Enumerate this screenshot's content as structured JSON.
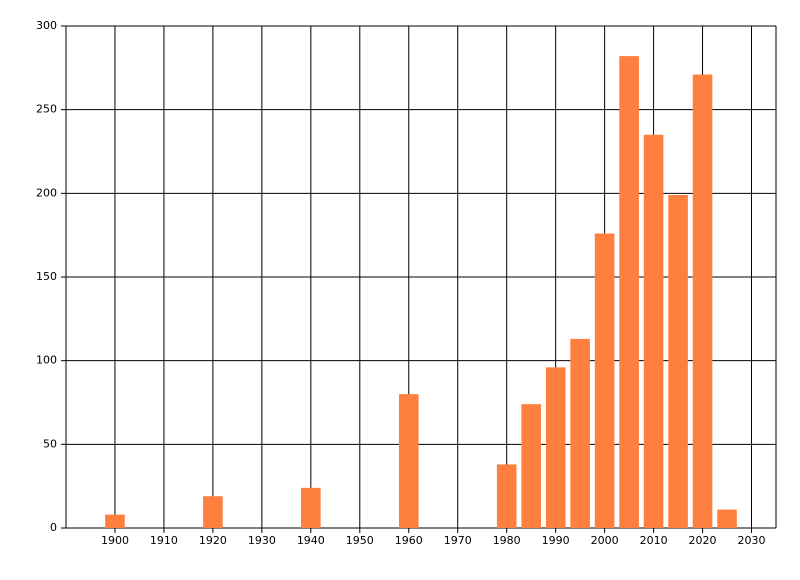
{
  "chart_data": {
    "type": "bar",
    "x": [
      1900,
      1920,
      1940,
      1960,
      1980,
      1985,
      1990,
      1995,
      2000,
      2005,
      2010,
      2015,
      2020,
      2025
    ],
    "values": [
      8,
      19,
      24,
      80,
      38,
      74,
      96,
      113,
      176,
      282,
      235,
      199,
      271,
      11
    ],
    "color": "#ff7f3f",
    "xlim": [
      1890,
      2035
    ],
    "xticks": [
      1900,
      1910,
      1920,
      1930,
      1940,
      1950,
      1960,
      1970,
      1980,
      1990,
      2000,
      2010,
      2020,
      2030
    ],
    "ylim": [
      0,
      300
    ],
    "yticks": [
      0,
      50,
      100,
      150,
      200,
      250,
      300
    ],
    "grid": true
  }
}
